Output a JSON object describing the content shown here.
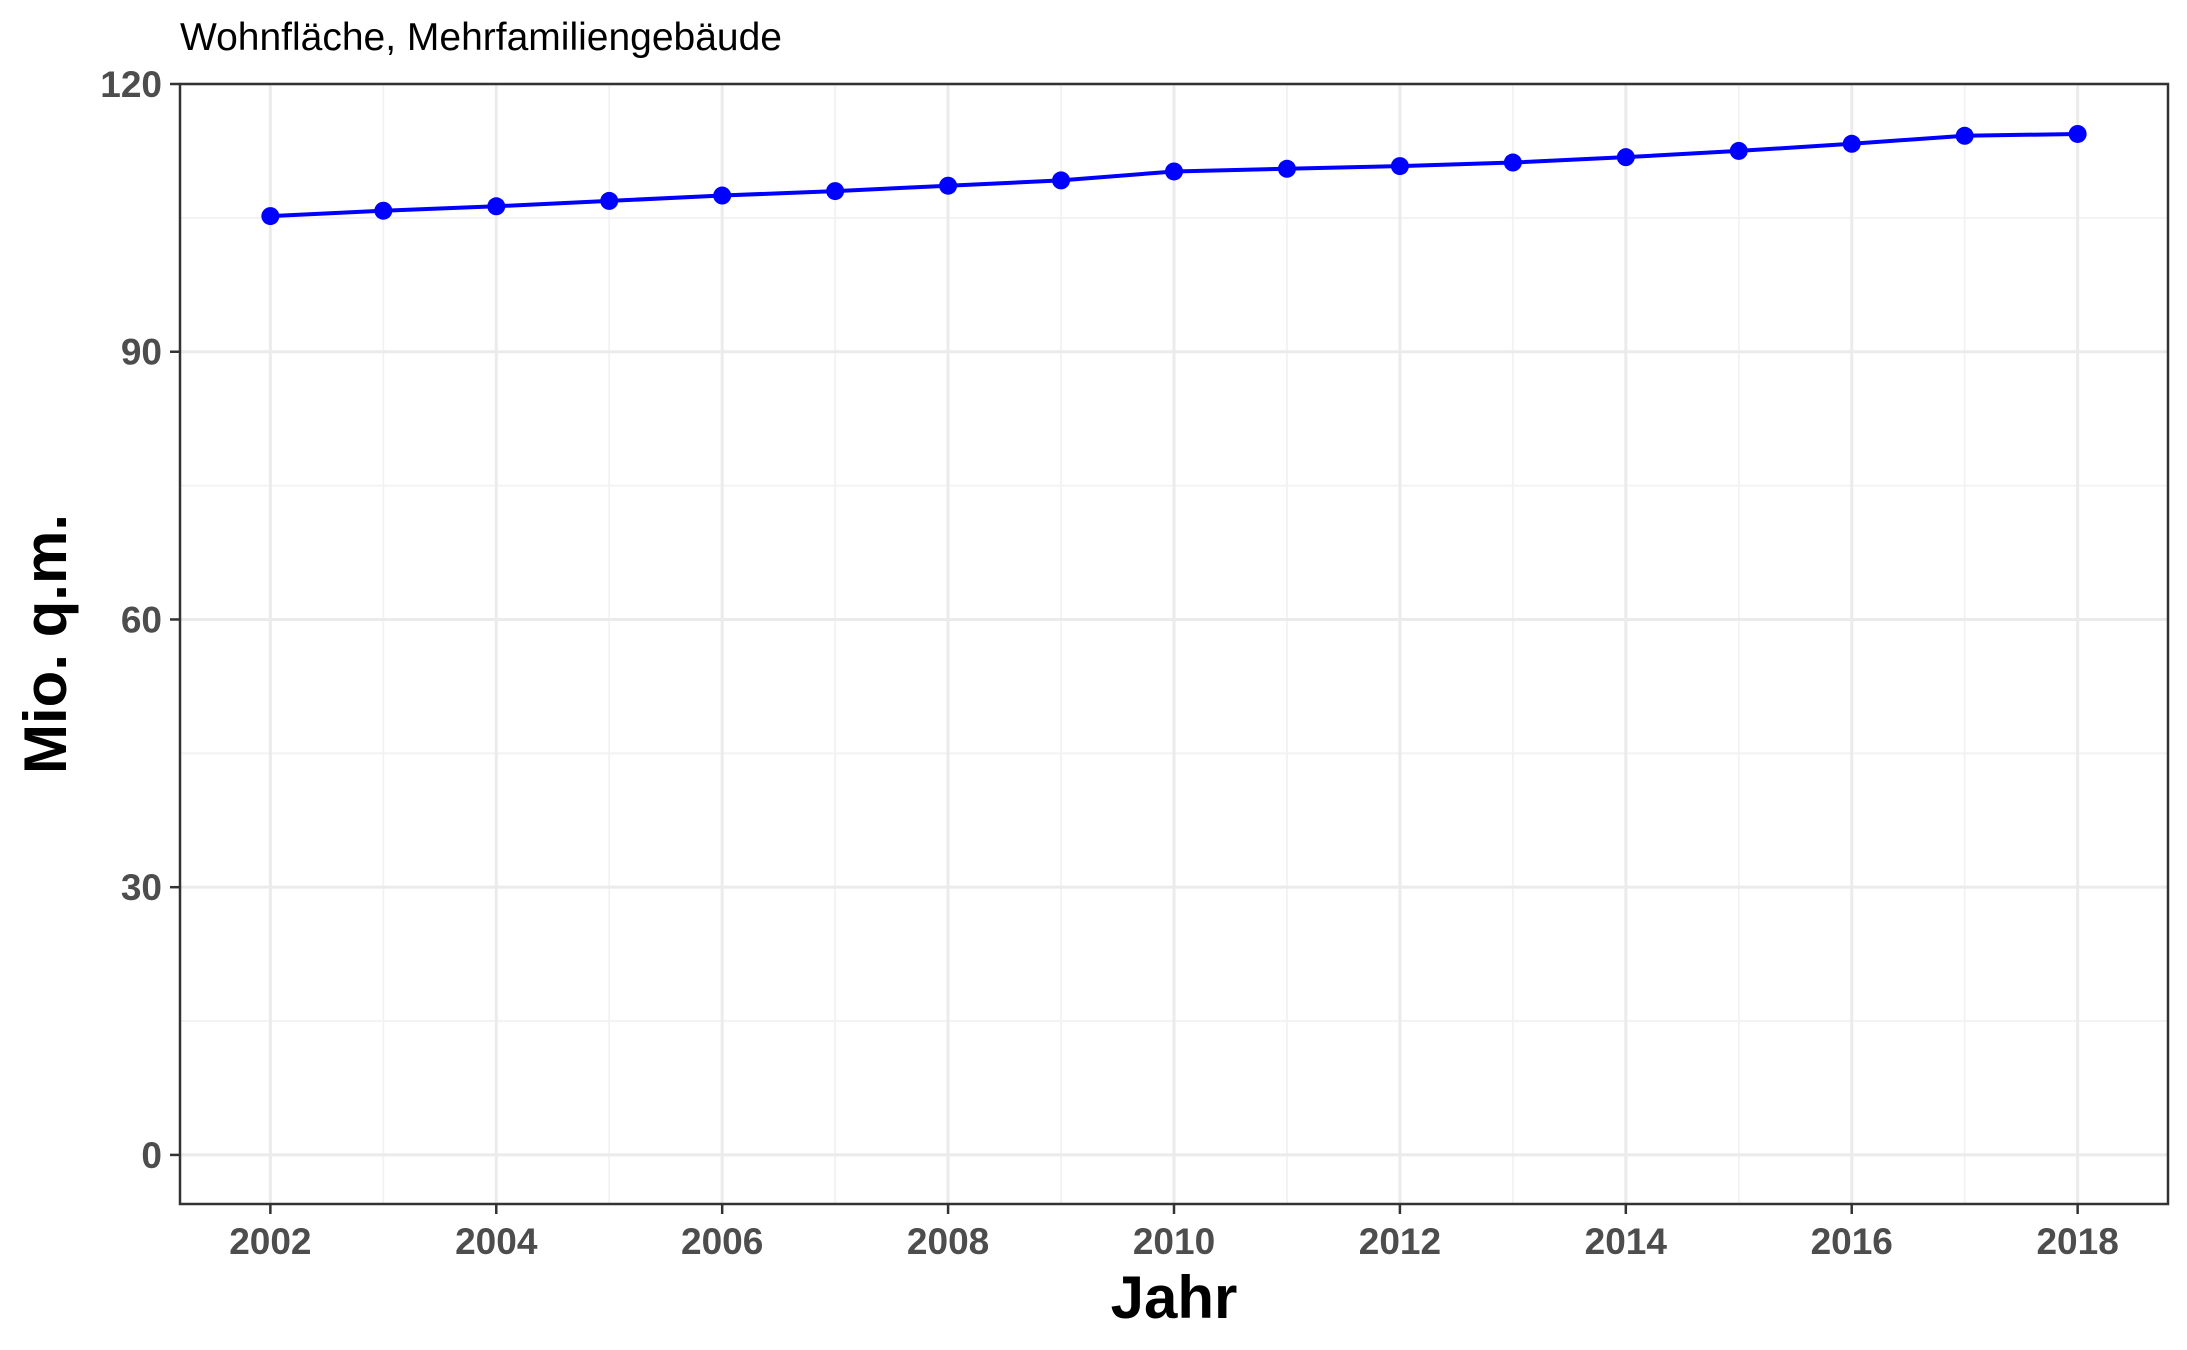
{
  "chart_data": {
    "type": "line",
    "title": "Wohnfläche, Mehrfamiliengebäude",
    "xlabel": "Jahr",
    "ylabel": "Mio. q.m.",
    "xlim": [
      2001.2,
      2018.8
    ],
    "ylim": [
      -5.5,
      120
    ],
    "xticks": [
      2002,
      2004,
      2006,
      2008,
      2010,
      2012,
      2014,
      2016,
      2018
    ],
    "yticks": [
      0,
      30,
      60,
      90,
      120
    ],
    "grid": true,
    "legend": "none",
    "series": [
      {
        "color": "#0000ff",
        "x": [
          2002,
          2003,
          2004,
          2005,
          2006,
          2007,
          2008,
          2009,
          2010,
          2011,
          2012,
          2013,
          2014,
          2015,
          2016,
          2017,
          2018
        ],
        "y": [
          105.2,
          105.8,
          106.3,
          106.9,
          107.5,
          108.0,
          108.6,
          109.2,
          110.2,
          110.5,
          110.8,
          111.2,
          111.8,
          112.5,
          113.3,
          114.2,
          114.4
        ]
      }
    ]
  }
}
